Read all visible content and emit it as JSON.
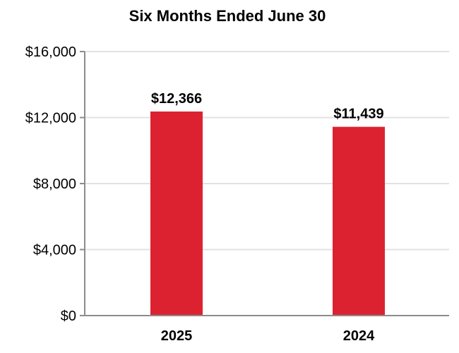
{
  "chart_data": {
    "type": "bar",
    "title": "Six Months Ended June 30",
    "categories": [
      "2025",
      "2024"
    ],
    "values": [
      12366,
      11439
    ],
    "data_labels": [
      "$12,366",
      "$11,439"
    ],
    "ylim": [
      0,
      16000
    ],
    "yticks": [
      0,
      4000,
      8000,
      12000,
      16000
    ],
    "ytick_labels": [
      "$0",
      "$4,000",
      "$8,000",
      "$12,000",
      "$16,000"
    ],
    "grid": true,
    "legend": "none",
    "xlabel": "",
    "ylabel": ""
  },
  "colors": {
    "bar": "#dc2230",
    "grid": "#e2e2e2",
    "axis": "#8c8c8c",
    "text": "#000000"
  }
}
